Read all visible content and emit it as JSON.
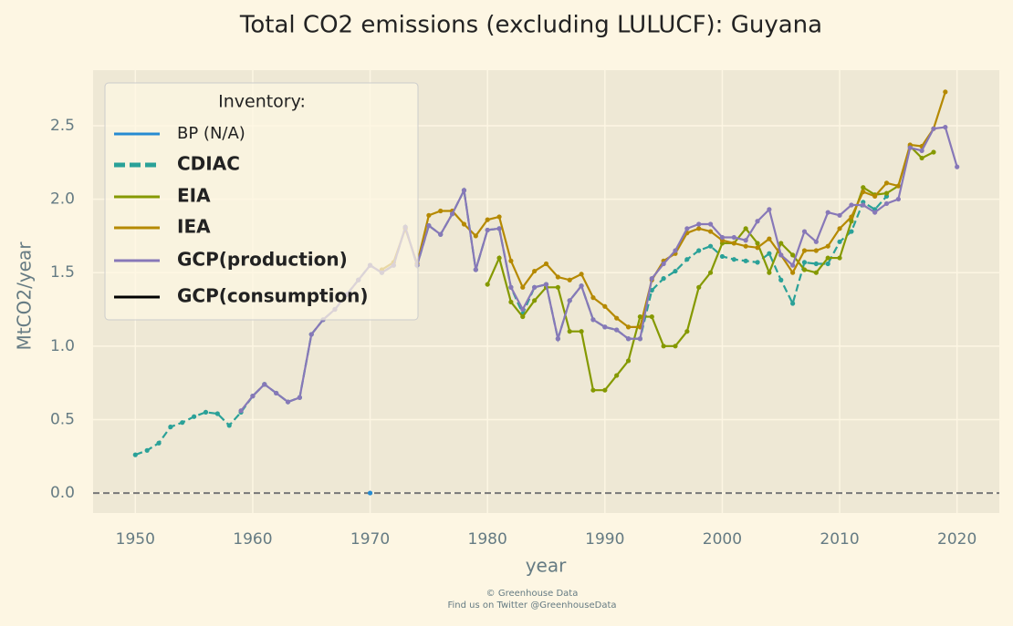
{
  "chart_data": {
    "type": "line",
    "title": "Total CO2 emissions (excluding LULUCF): Guyana",
    "x_label": "year",
    "y_label": "MtCO2/year",
    "legend_title": "Inventory:",
    "legend": "upper left",
    "grid": true,
    "xlim": [
      1946.4,
      2023.6
    ],
    "ylim": [
      -0.136,
      2.878
    ],
    "xticks": [
      1950,
      1960,
      1970,
      1980,
      1990,
      2000,
      2010,
      2020
    ],
    "yticks": [
      {
        "value": 0,
        "label": "0.0"
      },
      0.5,
      {
        "value": 1,
        "label": "1.0"
      },
      1.5,
      {
        "value": 2,
        "label": "2.0"
      },
      2.5
    ],
    "hline": 0,
    "series": [
      {
        "name": "BP (N/A)",
        "color": "#268bd2",
        "style": "solid",
        "x": [
          1970
        ],
        "values": [
          0
        ]
      },
      {
        "name": "CDIAC",
        "color": "#2aa198",
        "style": "dashed",
        "x": [
          1950,
          1951,
          1952,
          1953,
          1954,
          1955,
          1956,
          1957,
          1958,
          1959,
          1960,
          1961,
          1962,
          1963,
          1964,
          1965,
          1966,
          1967,
          1968,
          1969,
          1970,
          1971,
          1972,
          1973,
          1974,
          1975,
          1976,
          1977,
          1978,
          1979,
          1980,
          1981,
          1982,
          1983,
          1984,
          1985,
          1986,
          1987,
          1988,
          1989,
          1990,
          1991,
          1992,
          1993,
          1994,
          1995,
          1996,
          1997,
          1998,
          1999,
          2000,
          2001,
          2002,
          2003,
          2004,
          2005,
          2006,
          2007,
          2008,
          2009,
          2010,
          2011,
          2012,
          2013,
          2014
        ],
        "values": [
          0.26,
          0.29,
          0.34,
          0.45,
          0.48,
          0.52,
          0.55,
          0.54,
          0.46,
          0.55,
          0.66,
          0.74,
          0.68,
          0.62,
          0.65,
          1.08,
          1.18,
          1.25,
          1.35,
          1.45,
          1.55,
          1.5,
          1.55,
          1.81,
          1.55,
          1.82,
          1.76,
          1.9,
          2.06,
          1.52,
          1.79,
          1.8,
          1.4,
          1.22,
          1.4,
          1.42,
          1.05,
          1.31,
          1.41,
          1.18,
          1.13,
          1.11,
          1.05,
          1.05,
          1.38,
          1.46,
          1.51,
          1.59,
          1.65,
          1.68,
          1.61,
          1.59,
          1.58,
          1.57,
          1.63,
          1.45,
          1.29,
          1.57,
          1.56,
          1.56,
          1.71,
          1.78,
          1.98,
          1.93,
          2.02
        ]
      },
      {
        "name": "EIA",
        "color": "#859900",
        "style": "solid",
        "x": [
          1980,
          1981,
          1982,
          1983,
          1984,
          1985,
          1986,
          1987,
          1988,
          1989,
          1990,
          1991,
          1992,
          1993,
          1994,
          1995,
          1996,
          1997,
          1998,
          1999,
          2000,
          2001,
          2002,
          2003,
          2004,
          2005,
          2006,
          2007,
          2008,
          2009,
          2010,
          2011,
          2012,
          2013,
          2014,
          2015,
          2016,
          2017,
          2018
        ],
        "values": [
          1.42,
          1.6,
          1.3,
          1.2,
          1.31,
          1.4,
          1.4,
          1.1,
          1.1,
          0.7,
          0.7,
          0.8,
          0.9,
          1.2,
          1.2,
          1.0,
          1.0,
          1.1,
          1.4,
          1.5,
          1.7,
          1.7,
          1.8,
          1.7,
          1.5,
          1.7,
          1.62,
          1.52,
          1.5,
          1.6,
          1.6,
          1.85,
          2.08,
          2.03,
          2.04,
          2.09,
          2.36,
          2.28,
          2.32
        ]
      },
      {
        "name": "IEA",
        "color": "#b58900",
        "style": "solid",
        "x": [
          1971,
          1972,
          1973,
          1974,
          1975,
          1976,
          1977,
          1978,
          1979,
          1980,
          1981,
          1982,
          1983,
          1984,
          1985,
          1986,
          1987,
          1988,
          1989,
          1990,
          1991,
          1992,
          1993,
          1994,
          1995,
          1996,
          1997,
          1998,
          1999,
          2000,
          2001,
          2002,
          2003,
          2004,
          2005,
          2006,
          2007,
          2008,
          2009,
          2010,
          2011,
          2012,
          2013,
          2014,
          2015,
          2016,
          2017,
          2018,
          2019
        ],
        "values": [
          1.52,
          1.57,
          1.8,
          1.56,
          1.89,
          1.92,
          1.92,
          1.83,
          1.75,
          1.86,
          1.88,
          1.58,
          1.4,
          1.51,
          1.56,
          1.47,
          1.45,
          1.49,
          1.33,
          1.27,
          1.19,
          1.13,
          1.13,
          1.45,
          1.58,
          1.63,
          1.77,
          1.8,
          1.78,
          1.72,
          1.7,
          1.68,
          1.67,
          1.73,
          1.62,
          1.5,
          1.65,
          1.65,
          1.68,
          1.8,
          1.88,
          2.05,
          2.02,
          2.11,
          2.09,
          2.37,
          2.36,
          2.48,
          2.73
        ]
      },
      {
        "name": "GCP(production)",
        "color": "#8778b8",
        "style": "solid",
        "x": [
          1959,
          1960,
          1961,
          1962,
          1963,
          1964,
          1965,
          1966,
          1967,
          1968,
          1969,
          1970,
          1971,
          1972,
          1973,
          1974,
          1975,
          1976,
          1977,
          1978,
          1979,
          1980,
          1981,
          1982,
          1983,
          1984,
          1985,
          1986,
          1987,
          1988,
          1989,
          1990,
          1991,
          1992,
          1993,
          1994,
          1995,
          1996,
          1997,
          1998,
          1999,
          2000,
          2001,
          2002,
          2003,
          2004,
          2005,
          2006,
          2007,
          2008,
          2009,
          2010,
          2011,
          2012,
          2013,
          2014,
          2015,
          2016,
          2017,
          2018,
          2019,
          2020
        ],
        "values": [
          0.56,
          0.66,
          0.74,
          0.68,
          0.62,
          0.65,
          1.08,
          1.18,
          1.25,
          1.35,
          1.45,
          1.55,
          1.5,
          1.55,
          1.81,
          1.55,
          1.82,
          1.76,
          1.9,
          2.06,
          1.52,
          1.79,
          1.8,
          1.4,
          1.25,
          1.4,
          1.42,
          1.05,
          1.31,
          1.41,
          1.18,
          1.13,
          1.11,
          1.05,
          1.05,
          1.46,
          1.56,
          1.65,
          1.8,
          1.83,
          1.83,
          1.74,
          1.74,
          1.72,
          1.85,
          1.93,
          1.62,
          1.55,
          1.78,
          1.71,
          1.91,
          1.89,
          1.96,
          1.96,
          1.91,
          1.97,
          2.0,
          2.35,
          2.33,
          2.48,
          2.49,
          2.22
        ]
      },
      {
        "name": "GCP(consumption)",
        "color": "#000000",
        "style": "solid",
        "x": [],
        "values": []
      }
    ],
    "footer": [
      "© Greenhouse Data",
      "Find us on Twitter @GreenhouseData"
    ]
  }
}
